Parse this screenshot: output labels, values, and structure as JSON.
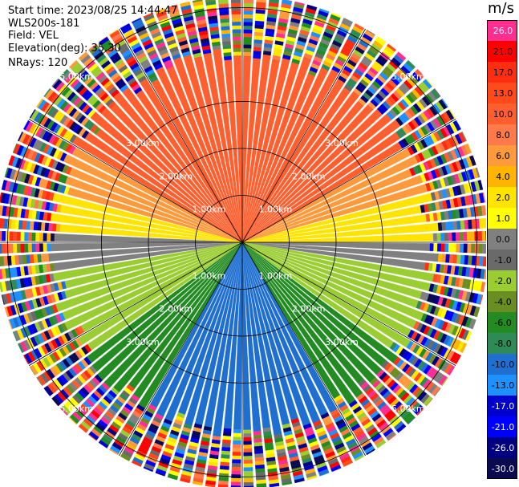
{
  "header": {
    "start_time": "Start time: 2023/08/25 14:44:47",
    "instrument": "WLS200s-181",
    "field": "Field: VEL",
    "elevation": "Elevation(deg): 35.30",
    "nrays": "NRays: 120"
  },
  "colorbar": {
    "unit": "m/s",
    "ticks": [
      "26.0",
      "21.0",
      "17.0",
      "13.0",
      "10.0",
      "8.0",
      "6.0",
      "4.0",
      "2.0",
      "1.0",
      "0.0",
      "-1.0",
      "-2.0",
      "-4.0",
      "-6.0",
      "-8.0",
      "-10.0",
      "-13.0",
      "-17.0",
      "-21.0",
      "-26.0",
      "-30.0"
    ],
    "colors": [
      "#ff2f92",
      "#ff0000",
      "#ff2e12",
      "#ff4a1c",
      "#ff5f2e",
      "#ff7a4a",
      "#ff9a3c",
      "#ffb400",
      "#ffe400",
      "#ffff00",
      "#808080",
      "#6a6a6a",
      "#9acd32",
      "#6b8e23",
      "#228b22",
      "#2e8b57",
      "#1e6fd0",
      "#1e90ff",
      "#0000cd",
      "#0000ff",
      "#000080",
      "#0a0a50"
    ],
    "tick_text_light": [
      true,
      false,
      false,
      false,
      false,
      false,
      false,
      false,
      false,
      false,
      false,
      false,
      false,
      false,
      false,
      false,
      false,
      false,
      true,
      true,
      true,
      true
    ]
  },
  "chart_data": {
    "type": "ppi",
    "field": "VEL",
    "units": "m/s",
    "range_rings_km": [
      1,
      2,
      3,
      5
    ],
    "range_ring_labels": [
      "1.00km",
      "2.00km",
      "3.00km",
      "5.00km"
    ],
    "nrays": 120,
    "valid_range_km": 4.2,
    "max_range_km": 5.25,
    "sectors": [
      {
        "azimuth_from_deg": 300,
        "azimuth_to_deg": 60,
        "velocity_ms": 10.0
      },
      {
        "azimuth_from_deg": 60,
        "azimuth_to_deg": 75,
        "velocity_ms": 6.0
      },
      {
        "azimuth_from_deg": 75,
        "azimuth_to_deg": 90,
        "velocity_ms": 2.0
      },
      {
        "azimuth_from_deg": 90,
        "azimuth_to_deg": 100,
        "velocity_ms": 0.0
      },
      {
        "azimuth_from_deg": 100,
        "azimuth_to_deg": 125,
        "velocity_ms": -2.0
      },
      {
        "azimuth_from_deg": 125,
        "azimuth_to_deg": 150,
        "velocity_ms": -6.0
      },
      {
        "azimuth_from_deg": 150,
        "azimuth_to_deg": 210,
        "velocity_ms": -10.0
      },
      {
        "azimuth_from_deg": 210,
        "azimuth_to_deg": 235,
        "velocity_ms": -6.0
      },
      {
        "azimuth_from_deg": 235,
        "azimuth_to_deg": 260,
        "velocity_ms": -2.0
      },
      {
        "azimuth_from_deg": 260,
        "azimuth_to_deg": 272,
        "velocity_ms": 0.0
      },
      {
        "azimuth_from_deg": 272,
        "azimuth_to_deg": 285,
        "velocity_ms": 2.0
      },
      {
        "azimuth_from_deg": 285,
        "azimuth_to_deg": 300,
        "velocity_ms": 6.0
      }
    ],
    "outer_region": "noise"
  }
}
